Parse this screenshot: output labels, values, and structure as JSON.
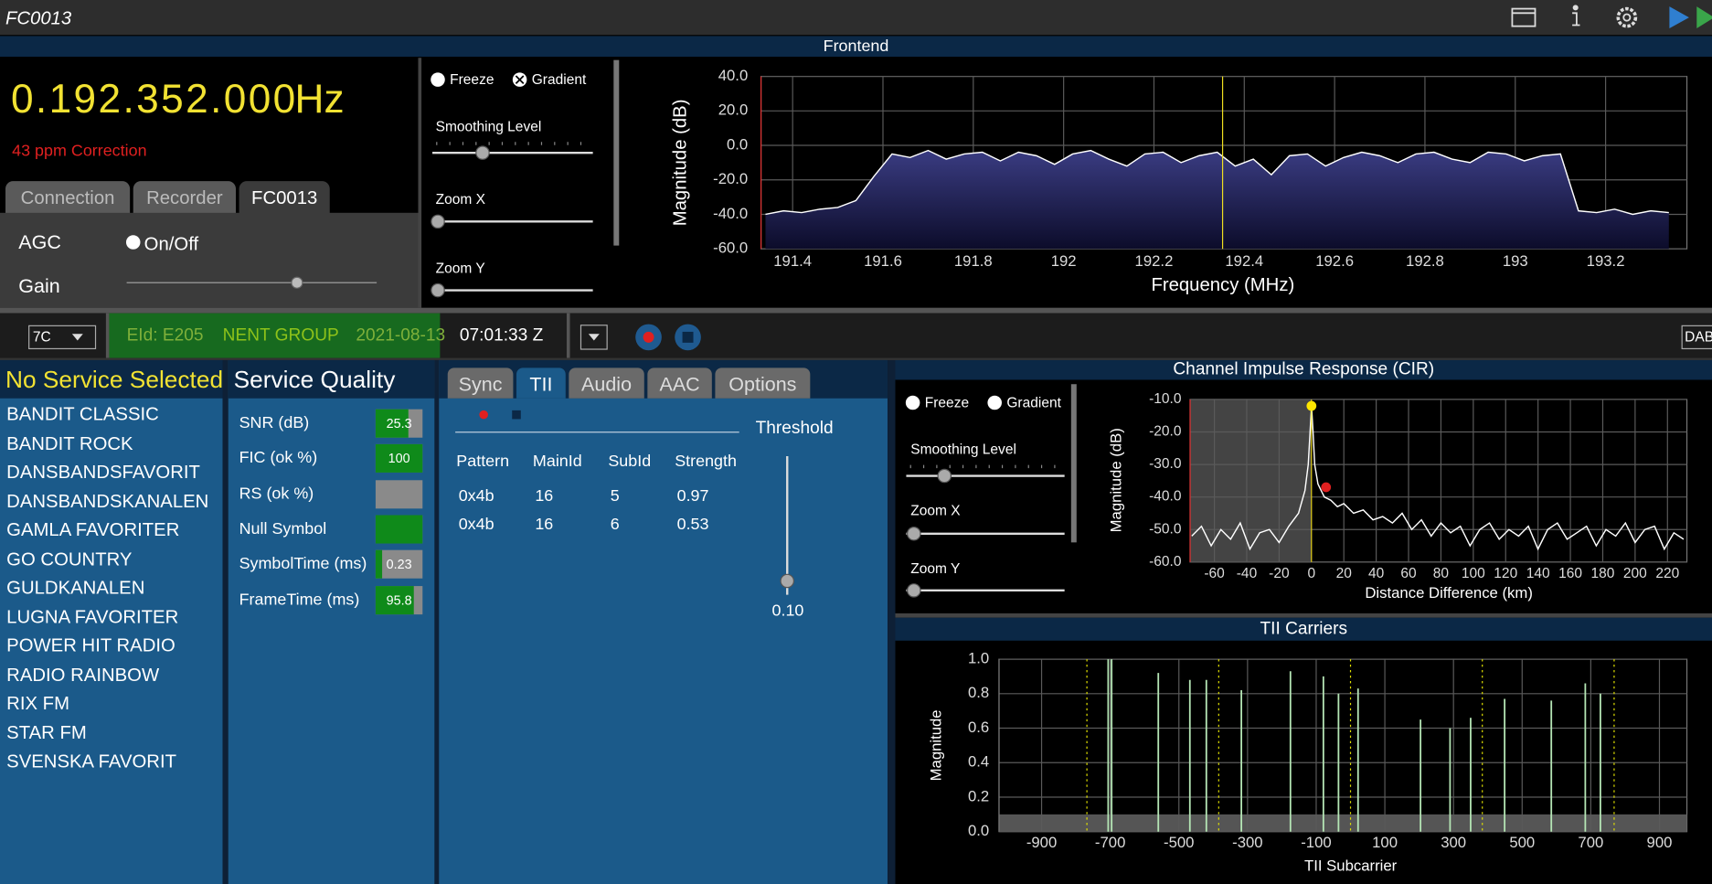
{
  "titlebar": {
    "title": "FC0013"
  },
  "frontend": {
    "title": "Frontend",
    "frequency": "0.192.352.000",
    "unit": "Hz",
    "correction": "43 ppm Correction",
    "tabs": [
      "Connection",
      "Recorder",
      "FC0013"
    ],
    "agc_label": "AGC",
    "agc_toggle": "On/Off",
    "gain_label": "Gain",
    "controls": {
      "freeze": "Freeze",
      "gradient": "Gradient",
      "smoothing": "Smoothing Level",
      "zoom_x": "Zoom X",
      "zoom_y": "Zoom Y"
    }
  },
  "status": {
    "channel": "7C",
    "eid": "EId: E205",
    "ensemble": "NENT GROUP",
    "date": "2021-08-13",
    "time": "07:01:33 Z",
    "mode": "DAB"
  },
  "services": {
    "header": "No Service Selected",
    "items": [
      "BANDIT CLASSIC",
      "BANDIT ROCK",
      "DANSBANDSFAVORIT",
      "DANSBANDSKANALEN",
      "GAMLA FAVORITER",
      "GO COUNTRY",
      "GULDKANALEN",
      "LUGNA FAVORITER",
      "POWER HIT RADIO",
      "RADIO RAINBOW",
      "RIX FM",
      "STAR FM",
      "SVENSKA FAVORIT"
    ]
  },
  "quality": {
    "title": "Service Quality",
    "rows": [
      {
        "label": "SNR (dB)",
        "value": 25.3
      },
      {
        "label": "FIC (ok %)",
        "value": 100
      },
      {
        "label": "RS (ok %)"
      },
      {
        "label": "Null Symbol"
      },
      {
        "label": "SymbolTime (ms)",
        "value": 0.23
      },
      {
        "label": "FrameTime (ms)",
        "value": 95.8
      }
    ]
  },
  "tii_panel": {
    "tabs": [
      "Sync",
      "TII",
      "Audio",
      "AAC",
      "Options"
    ],
    "columns": [
      "Pattern",
      "MainId",
      "SubId",
      "Strength"
    ],
    "rows": [
      [
        "0x4b",
        16,
        5,
        0.97
      ],
      [
        "0x4b",
        16,
        6,
        0.53
      ]
    ],
    "threshold": {
      "label": "Threshold",
      "value": 0.1,
      "value_label": "0.10"
    }
  },
  "cir_controls": {
    "freeze": "Freeze",
    "gradient": "Gradient",
    "smoothing": "Smoothing Level",
    "zoom_x": "Zoom X",
    "zoom_y": "Zoom Y"
  },
  "chart_data": [
    {
      "type": "area",
      "xlabel": "Frequency (MHz)",
      "ylabel": "Magnitude (dB)",
      "xlim": [
        191.33,
        193.38
      ],
      "ylim": [
        -60,
        40
      ],
      "xticks": [
        191.4,
        191.6,
        191.8,
        192,
        192.2,
        192.4,
        192.6,
        192.8,
        193,
        193.2
      ],
      "yticks": [
        {
          "value": 40,
          "label": "40.0"
        },
        {
          "value": 20,
          "label": "20.0"
        },
        {
          "value": 0,
          "label": "0.0"
        },
        {
          "value": -20,
          "label": "-20.0"
        },
        {
          "value": -40,
          "label": "-40.0"
        },
        {
          "value": -60,
          "label": "-60.0"
        }
      ],
      "x": [
        191.34,
        191.38,
        191.42,
        191.46,
        191.5,
        191.54,
        191.58,
        191.62,
        191.66,
        191.7,
        191.74,
        191.78,
        191.82,
        191.86,
        191.9,
        191.94,
        191.98,
        192.02,
        192.06,
        192.1,
        192.14,
        192.18,
        192.22,
        192.26,
        192.3,
        192.34,
        192.38,
        192.42,
        192.46,
        192.5,
        192.54,
        192.58,
        192.62,
        192.66,
        192.7,
        192.74,
        192.78,
        192.82,
        192.86,
        192.9,
        192.94,
        192.98,
        193.02,
        193.06,
        193.1,
        193.14,
        193.18,
        193.22,
        193.26,
        193.3,
        193.34
      ],
      "values": [
        -40,
        -38,
        -39,
        -37,
        -36,
        -32,
        -18,
        -5,
        -7,
        -3,
        -8,
        -5,
        -4,
        -9,
        -4,
        -6,
        -11,
        -5,
        -3,
        -8,
        -12,
        -5,
        -4,
        -10,
        -6,
        -4,
        -12,
        -8,
        -17,
        -6,
        -5,
        -12,
        -7,
        -4,
        -6,
        -10,
        -5,
        -4,
        -8,
        -10,
        -4,
        -5,
        -9,
        -6,
        -5,
        -38,
        -39,
        -37,
        -40,
        -38,
        -39
      ],
      "color": "#ffffff",
      "fill": "#2c2e66",
      "marker": 192.352,
      "marker_color": "#f0e020",
      "grid": true
    },
    {
      "type": "line",
      "title": "Channel Impulse Response (CIR)",
      "xlabel": "Distance Difference (km)",
      "ylabel": "Magnitude (dB)",
      "xlim": [
        -75,
        232
      ],
      "ylim": [
        -60,
        -10
      ],
      "xticks": [
        -60,
        -40,
        -20,
        0,
        20,
        40,
        60,
        80,
        100,
        120,
        140,
        160,
        180,
        200,
        220
      ],
      "yticks": [
        {
          "value": -10,
          "label": "-10.0"
        },
        {
          "value": -20,
          "label": "-20.0"
        },
        {
          "value": -30,
          "label": "-30.0"
        },
        {
          "value": -40,
          "label": "-40.0"
        },
        {
          "value": -50,
          "label": "-50.0"
        },
        {
          "value": -60,
          "label": "-60.0"
        }
      ],
      "x": [
        -74,
        -68,
        -62,
        -56,
        -50,
        -44,
        -38,
        -32,
        -26,
        -20,
        -14,
        -8,
        -4,
        -2,
        0,
        1,
        2,
        4,
        6,
        8,
        12,
        16,
        20,
        26,
        32,
        38,
        44,
        50,
        56,
        62,
        68,
        74,
        80,
        86,
        92,
        98,
        104,
        110,
        116,
        122,
        128,
        134,
        140,
        146,
        152,
        158,
        164,
        170,
        176,
        182,
        188,
        194,
        200,
        206,
        212,
        218,
        224,
        230
      ],
      "values": [
        -52,
        -49,
        -55,
        -50,
        -53,
        -48,
        -56,
        -51,
        -50,
        -54,
        -49,
        -45,
        -38,
        -30,
        -12,
        -20,
        -30,
        -36,
        -38,
        -40,
        -41,
        -43,
        -42,
        -45,
        -44,
        -47,
        -46,
        -48,
        -45,
        -50,
        -47,
        -52,
        -48,
        -51,
        -49,
        -55,
        -50,
        -48,
        -53,
        -50,
        -52,
        -49,
        -56,
        -50,
        -48,
        -53,
        -51,
        -49,
        -55,
        -50,
        -52,
        -48,
        -54,
        -50,
        -49,
        -56,
        -51,
        -53
      ],
      "color": "#ffffff",
      "shaded_region": [
        -75,
        0
      ],
      "points": [
        {
          "x": 0,
          "y": -12,
          "color": "#ffe600"
        },
        {
          "x": 9,
          "y": -37,
          "color": "#e02020"
        }
      ],
      "grid": true
    },
    {
      "type": "stem",
      "title": "TII Carriers",
      "xlabel": "TII Subcarrier",
      "ylabel": "Magnitude",
      "xlim": [
        -1024,
        980
      ],
      "ylim": [
        0,
        1
      ],
      "xticks": [
        -900,
        -700,
        -500,
        -300,
        -100,
        100,
        300,
        500,
        700,
        900
      ],
      "yticks": [
        {
          "value": 0,
          "label": "0.0"
        },
        0.2,
        0.4,
        0.6,
        0.8,
        {
          "value": 1,
          "label": "1.0"
        }
      ],
      "x": [
        -706,
        -696,
        -560,
        -468,
        -420,
        -318,
        -175,
        -79,
        -35,
        22,
        204,
        290,
        350,
        449,
        585,
        684,
        728
      ],
      "values": [
        1.0,
        1.0,
        0.92,
        0.88,
        0.88,
        0.82,
        0.93,
        0.9,
        0.8,
        0.83,
        0.65,
        0.6,
        0.66,
        0.77,
        0.76,
        0.86,
        0.8
      ],
      "color": "#b5e6b5",
      "guides": [
        -768,
        -384,
        0,
        384,
        768
      ],
      "guide_color": "#e0e000",
      "grid": true
    }
  ]
}
